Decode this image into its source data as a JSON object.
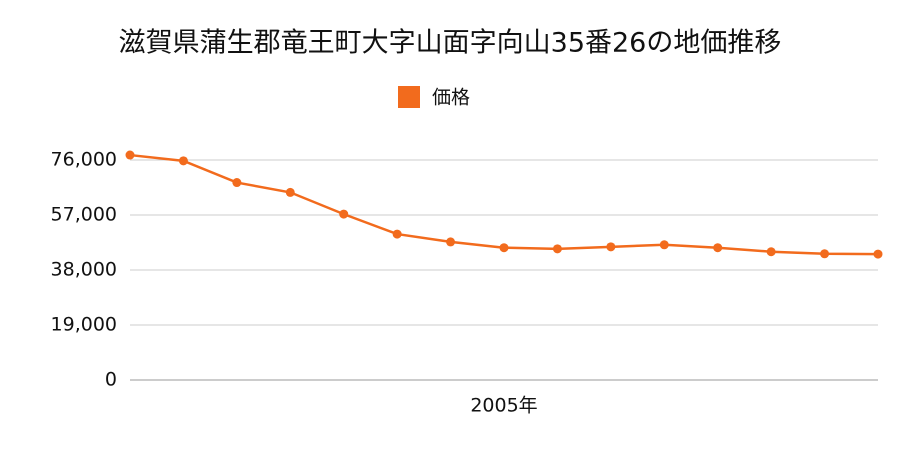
{
  "chart_data": {
    "type": "line",
    "title": "滋賀県蒲生郡竜王町大字山面字向山35番26の地価推移",
    "categories": [
      null,
      null,
      null,
      null,
      null,
      null,
      null,
      "2005年",
      null,
      null,
      null,
      null,
      null,
      null,
      null
    ],
    "series": [
      {
        "name": "価格",
        "color": "#f26b1d",
        "values": [
          77700,
          75700,
          68200,
          64800,
          57300,
          50400,
          47700,
          45700,
          45300,
          46000,
          46700,
          45700,
          44300,
          43600,
          43500
        ]
      }
    ],
    "ylim": [
      0,
      80000
    ],
    "yticks": [
      0,
      {
        "value": 19000,
        "label": "19,000"
      },
      {
        "value": 38000,
        "label": "38,000"
      },
      {
        "value": 57000,
        "label": "57,000"
      },
      {
        "value": 76000,
        "label": "76,000"
      }
    ],
    "grid": true,
    "legend": "top"
  }
}
